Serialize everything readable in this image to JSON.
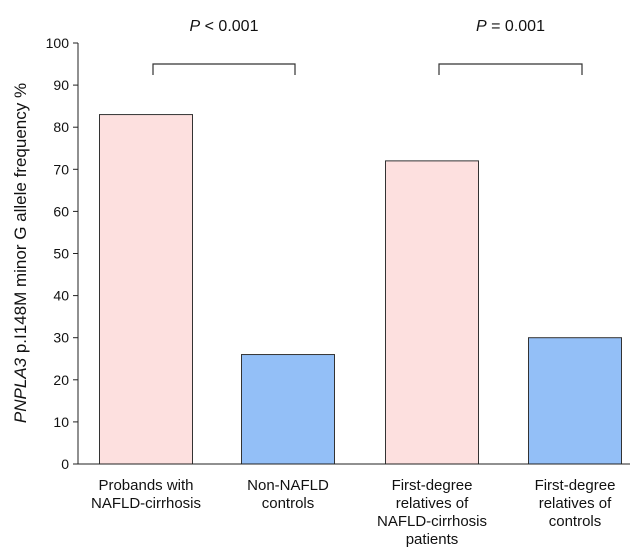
{
  "chart_data": {
    "type": "bar",
    "ylabel_gene": "PNPLA3",
    "ylabel_rest": " p.I148M minor G allele frequency %",
    "ylim": [
      0,
      100
    ],
    "yticks": [
      0,
      10,
      20,
      30,
      40,
      50,
      60,
      70,
      80,
      90,
      100
    ],
    "grid": false,
    "categories": [
      [
        "Probands with",
        "NAFLD-cirrhosis"
      ],
      [
        "Non-NAFLD",
        "controls"
      ],
      [
        "First-degree",
        "relatives of",
        "NAFLD-cirrhosis",
        "patients"
      ],
      [
        "First-degree",
        "relatives of",
        "controls"
      ]
    ],
    "values": [
      83,
      26,
      72,
      30
    ],
    "bar_colors": [
      "#fde0df",
      "#93bff7",
      "#fde0df",
      "#93bff7"
    ],
    "comparisons": [
      {
        "between": [
          0,
          1
        ],
        "p_symbol": "P",
        "p_text": " < 0.001"
      },
      {
        "between": [
          2,
          3
        ],
        "p_symbol": "P",
        "p_text": " = 0.001"
      }
    ]
  }
}
